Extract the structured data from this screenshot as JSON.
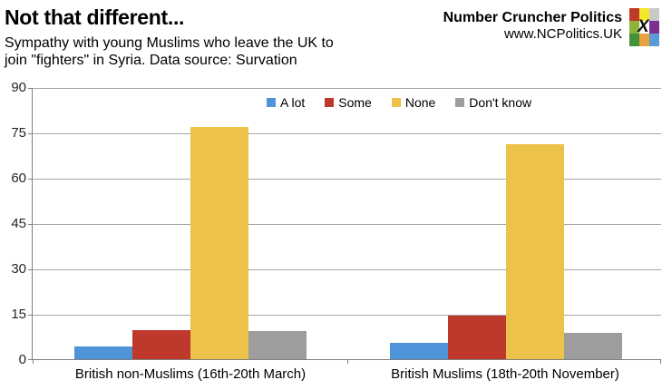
{
  "header": {
    "title": "Not that different...",
    "subtitle_line1": "Sympathy with young Muslims who leave the UK to",
    "subtitle_line2": "join \"fighters\" in Syria. Data source: Survation",
    "brand_name": "Number Cruncher Politics",
    "brand_url": "www.NCPolitics.UK"
  },
  "logo": {
    "x_glyph": "X",
    "colors": [
      "#c0392b",
      "#f5e829",
      "#c9c9c9",
      "#8db33b",
      "#fdfdfd",
      "#7b2f8e",
      "#43913b",
      "#e7a33c",
      "#5b9bd5"
    ]
  },
  "chart_data": {
    "type": "bar",
    "title": "Not that different...",
    "subtitle": "Sympathy with young Muslims who leave the UK to join \"fighters\" in Syria. Data source: Survation",
    "categories": [
      "British non-Muslims (16th-20th March)",
      "British Muslims (18th-20th November)"
    ],
    "series": [
      {
        "name": "A lot",
        "color": "#4f93d8",
        "values": [
          4.3,
          5.3
        ]
      },
      {
        "name": "Some",
        "color": "#be392c",
        "values": [
          9.6,
          14.5
        ]
      },
      {
        "name": "None",
        "color": "#ecc24a",
        "values": [
          77.0,
          71.4
        ]
      },
      {
        "name": "Don't know",
        "color": "#9d9d9d",
        "values": [
          9.4,
          8.8
        ]
      }
    ],
    "ylabel": "",
    "xlabel": "",
    "ylim": [
      0,
      90
    ],
    "yticks": [
      0,
      15,
      30,
      45,
      60,
      75,
      90
    ],
    "grid": true,
    "legend_position": "top-center"
  }
}
